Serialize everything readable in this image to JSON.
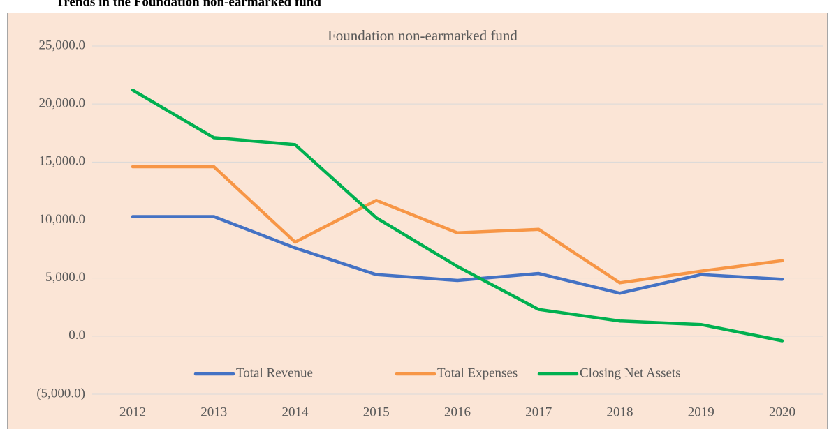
{
  "heading": "Trends in the Foundation non-earmarked fund",
  "chart_data": {
    "type": "line",
    "title": "Foundation non-earmarked fund",
    "categories": [
      "2012",
      "2013",
      "2014",
      "2015",
      "2016",
      "2017",
      "2018",
      "2019",
      "2020"
    ],
    "series": [
      {
        "name": "Total Revenue",
        "color": "#4472c4",
        "values": [
          10300,
          10300,
          7600,
          5300,
          4800,
          5400,
          3700,
          5300,
          4900
        ]
      },
      {
        "name": "Total Expenses",
        "color": "#f79646",
        "values": [
          14600,
          14600,
          8100,
          11700,
          8900,
          9200,
          4600,
          5600,
          6500
        ]
      },
      {
        "name": "Closing Net Assets",
        "color": "#00b050",
        "values": [
          21200,
          17100,
          16500,
          10200,
          6000,
          2300,
          1300,
          1000,
          -400
        ]
      }
    ],
    "ylim": [
      -5000,
      25000
    ],
    "yticks": [
      {
        "value": -5000,
        "label": "(5,000.0)"
      },
      {
        "value": 0,
        "label": "0.0"
      },
      {
        "value": 5000,
        "label": "5,000.0"
      },
      {
        "value": 10000,
        "label": "10,000.0"
      },
      {
        "value": 15000,
        "label": "15,000.0"
      },
      {
        "value": 20000,
        "label": "20,000.0"
      },
      {
        "value": 25000,
        "label": "25,000.0"
      }
    ],
    "grid": true,
    "legend": "bottom"
  }
}
